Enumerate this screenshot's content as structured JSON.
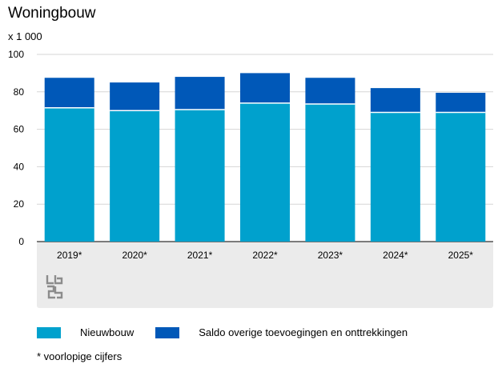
{
  "chart_data": {
    "type": "bar",
    "stacked": true,
    "title": "Woningbouw",
    "unit_label": "x 1 000",
    "categories": [
      "2019*",
      "2020*",
      "2021*",
      "2022*",
      "2023*",
      "2024*",
      "2025*"
    ],
    "series": [
      {
        "name": "Nieuwbouw",
        "color": "#00a1cd",
        "values": [
          71.5,
          70,
          70.5,
          74,
          73.5,
          69,
          69
        ]
      },
      {
        "name": "Saldo overige toevoegingen en onttrekkingen",
        "color": "#0058b8",
        "values": [
          16,
          15,
          17.5,
          16,
          14,
          13,
          10.5
        ]
      }
    ],
    "ylim": [
      0,
      100
    ],
    "yticks": [
      0,
      20,
      40,
      60,
      80,
      100
    ],
    "legend_position": "bottom-left"
  },
  "footnote": "* voorlopige cijfers",
  "logo_icon": "cbs-logo-icon"
}
